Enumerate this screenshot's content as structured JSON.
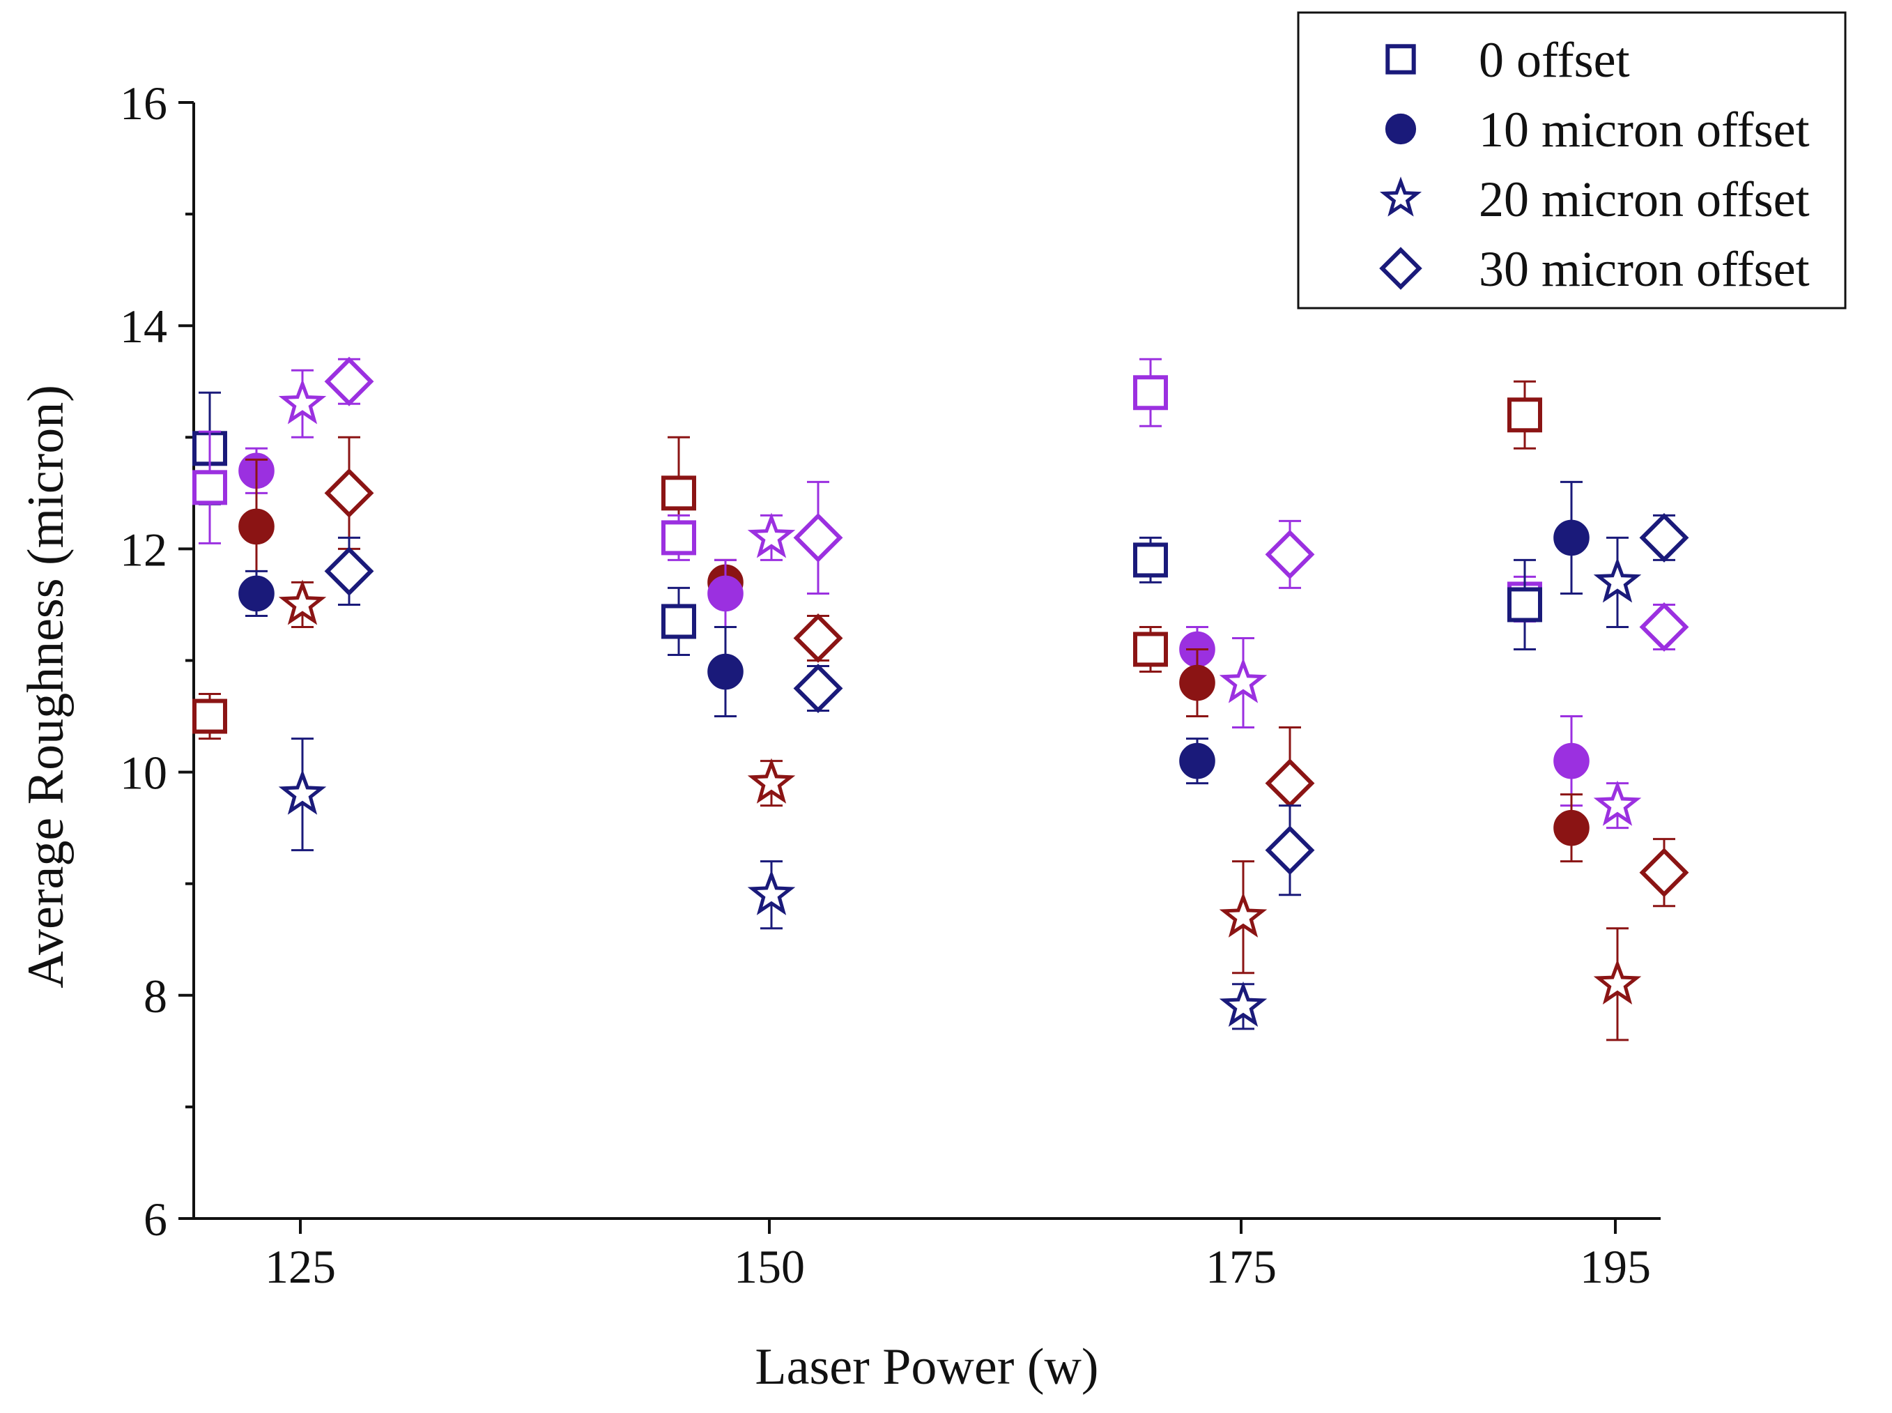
{
  "chart_data": {
    "type": "scatter",
    "title": "",
    "xlabel": "Laser Power (w)",
    "ylabel": "Average Roughness (micron)",
    "ylim": [
      6,
      16
    ],
    "yticks": [
      6,
      8,
      10,
      12,
      14,
      16
    ],
    "grid": false,
    "legend_position": "top-right",
    "categories": [
      "125",
      "150",
      "175",
      "195"
    ],
    "colors": {
      "navy": "#1a1a7a",
      "maroon": "#8b1414",
      "purple": "#9b30e0"
    },
    "series": [
      {
        "name": "0 offset",
        "marker": "square",
        "filled": false,
        "legend_color": "#1a1a7a",
        "points": [
          {
            "category": "125",
            "y": 12.9,
            "err": 0.5,
            "color": "#1a1a7a"
          },
          {
            "category": "125",
            "y": 12.55,
            "err": 0.5,
            "color": "#9b30e0"
          },
          {
            "category": "125",
            "y": 10.5,
            "err": 0.2,
            "color": "#8b1414"
          },
          {
            "category": "150",
            "y": 12.5,
            "err": 0.5,
            "color": "#8b1414"
          },
          {
            "category": "150",
            "y": 12.1,
            "err": 0.2,
            "color": "#9b30e0"
          },
          {
            "category": "150",
            "y": 11.35,
            "err": 0.3,
            "color": "#1a1a7a"
          },
          {
            "category": "175",
            "y": 13.4,
            "err": 0.3,
            "color": "#9b30e0"
          },
          {
            "category": "175",
            "y": 11.9,
            "err": 0.2,
            "color": "#1a1a7a"
          },
          {
            "category": "175",
            "y": 11.1,
            "err": 0.2,
            "color": "#8b1414"
          },
          {
            "category": "195",
            "y": 13.2,
            "err": 0.3,
            "color": "#8b1414"
          },
          {
            "category": "195",
            "y": 11.55,
            "err": 0.2,
            "color": "#9b30e0"
          },
          {
            "category": "195",
            "y": 11.5,
            "err": 0.4,
            "color": "#1a1a7a"
          }
        ]
      },
      {
        "name": "10 micron offset",
        "marker": "circle",
        "filled": true,
        "legend_color": "#1a1a7a",
        "points": [
          {
            "category": "125",
            "y": 12.7,
            "err": 0.2,
            "color": "#9b30e0"
          },
          {
            "category": "125",
            "y": 12.2,
            "err": 0.6,
            "color": "#8b1414"
          },
          {
            "category": "125",
            "y": 11.6,
            "err": 0.2,
            "color": "#1a1a7a"
          },
          {
            "category": "150",
            "y": 11.7,
            "err": 0.2,
            "color": "#8b1414"
          },
          {
            "category": "150",
            "y": 11.6,
            "err": 0.3,
            "color": "#9b30e0"
          },
          {
            "category": "150",
            "y": 10.9,
            "err": 0.4,
            "color": "#1a1a7a"
          },
          {
            "category": "175",
            "y": 11.1,
            "err": 0.2,
            "color": "#9b30e0"
          },
          {
            "category": "175",
            "y": 10.8,
            "err": 0.3,
            "color": "#8b1414"
          },
          {
            "category": "175",
            "y": 10.1,
            "err": 0.2,
            "color": "#1a1a7a"
          },
          {
            "category": "195",
            "y": 12.1,
            "err": 0.5,
            "color": "#1a1a7a"
          },
          {
            "category": "195",
            "y": 10.1,
            "err": 0.4,
            "color": "#9b30e0"
          },
          {
            "category": "195",
            "y": 9.5,
            "err": 0.3,
            "color": "#8b1414"
          }
        ]
      },
      {
        "name": "20 micron offset",
        "marker": "star",
        "filled": false,
        "legend_color": "#1a1a7a",
        "points": [
          {
            "category": "125",
            "y": 13.3,
            "err": 0.3,
            "color": "#9b30e0"
          },
          {
            "category": "125",
            "y": 11.5,
            "err": 0.2,
            "color": "#8b1414"
          },
          {
            "category": "125",
            "y": 9.8,
            "err": 0.5,
            "color": "#1a1a7a"
          },
          {
            "category": "150",
            "y": 12.1,
            "err": 0.2,
            "color": "#9b30e0"
          },
          {
            "category": "150",
            "y": 9.9,
            "err": 0.2,
            "color": "#8b1414"
          },
          {
            "category": "150",
            "y": 8.9,
            "err": 0.3,
            "color": "#1a1a7a"
          },
          {
            "category": "175",
            "y": 10.8,
            "err": 0.4,
            "color": "#9b30e0"
          },
          {
            "category": "175",
            "y": 8.7,
            "err": 0.5,
            "color": "#8b1414"
          },
          {
            "category": "175",
            "y": 7.9,
            "err": 0.2,
            "color": "#1a1a7a"
          },
          {
            "category": "195",
            "y": 11.7,
            "err": 0.4,
            "color": "#1a1a7a"
          },
          {
            "category": "195",
            "y": 9.7,
            "err": 0.2,
            "color": "#9b30e0"
          },
          {
            "category": "195",
            "y": 8.1,
            "err": 0.5,
            "color": "#8b1414"
          }
        ]
      },
      {
        "name": "30 micron offset",
        "marker": "diamond",
        "filled": false,
        "legend_color": "#1a1a7a",
        "points": [
          {
            "category": "125",
            "y": 13.5,
            "err": 0.2,
            "color": "#9b30e0"
          },
          {
            "category": "125",
            "y": 12.5,
            "err": 0.5,
            "color": "#8b1414"
          },
          {
            "category": "125",
            "y": 11.8,
            "err": 0.3,
            "color": "#1a1a7a"
          },
          {
            "category": "150",
            "y": 12.1,
            "err": 0.5,
            "color": "#9b30e0"
          },
          {
            "category": "150",
            "y": 11.2,
            "err": 0.2,
            "color": "#8b1414"
          },
          {
            "category": "150",
            "y": 10.75,
            "err": 0.2,
            "color": "#1a1a7a"
          },
          {
            "category": "175",
            "y": 11.95,
            "err": 0.3,
            "color": "#9b30e0"
          },
          {
            "category": "175",
            "y": 9.9,
            "err": 0.5,
            "color": "#8b1414"
          },
          {
            "category": "175",
            "y": 9.3,
            "err": 0.4,
            "color": "#1a1a7a"
          },
          {
            "category": "195",
            "y": 12.1,
            "err": 0.2,
            "color": "#1a1a7a"
          },
          {
            "category": "195",
            "y": 11.3,
            "err": 0.2,
            "color": "#9b30e0"
          },
          {
            "category": "195",
            "y": 9.1,
            "err": 0.3,
            "color": "#8b1414"
          }
        ]
      }
    ]
  }
}
